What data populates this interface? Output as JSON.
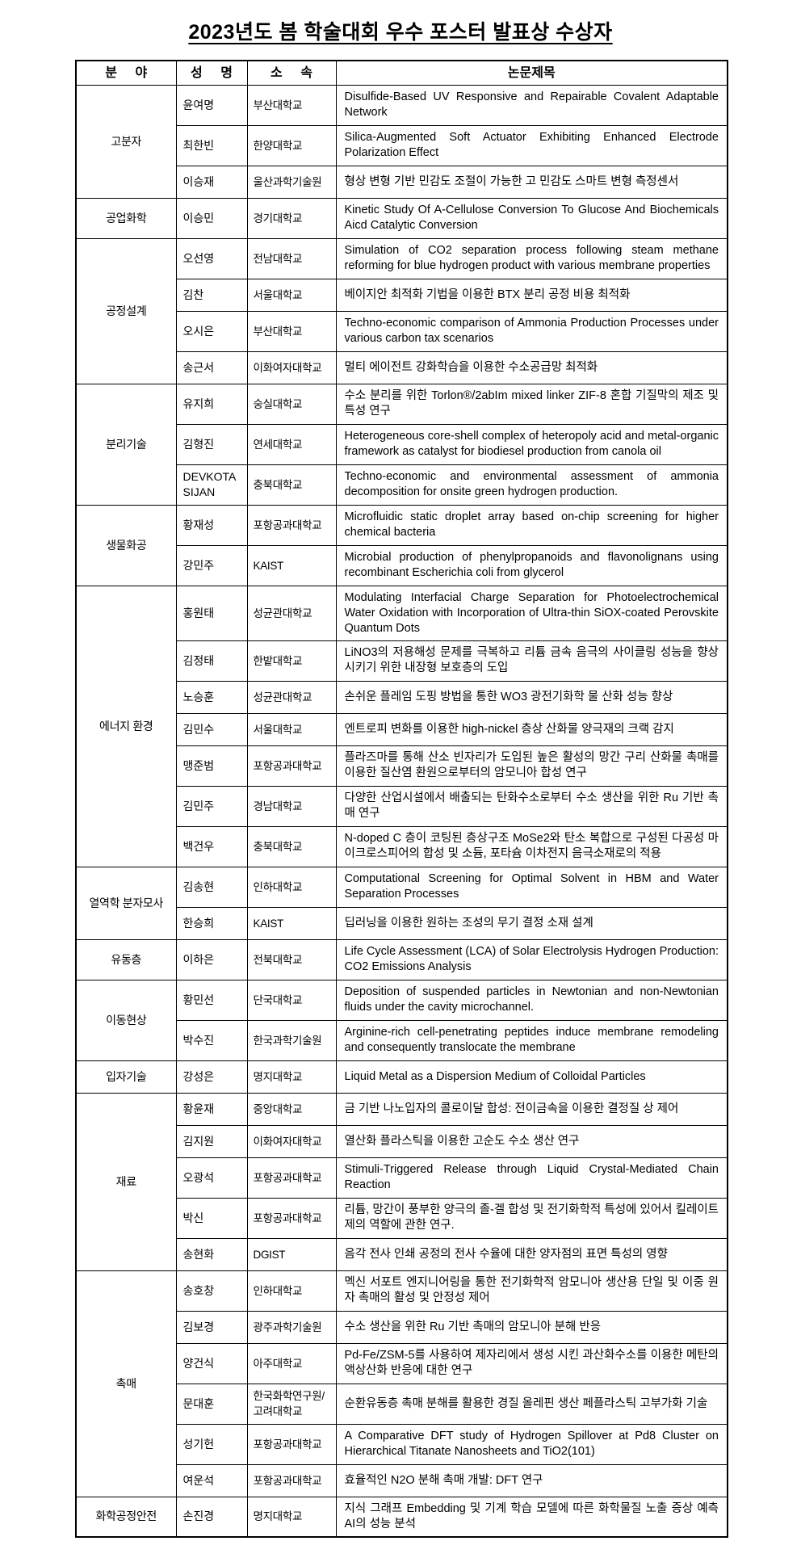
{
  "page": {
    "title": "2023년도 봄 학술대회 우수 포스터 발표상 수상자"
  },
  "colors": {
    "background": "#ffffff",
    "text": "#000000",
    "border": "#000000"
  },
  "table": {
    "headers": [
      "분 야",
      "성 명",
      "소 속",
      "논문제목"
    ],
    "sections": [
      {
        "field": "고분자",
        "rows": [
          {
            "name": "윤여명",
            "affiliation": "부산대학교",
            "title": "Disulfide-Based UV Responsive and Repairable Covalent Adaptable Network",
            "lines": 2
          },
          {
            "name": "최한빈",
            "affiliation": "한양대학교",
            "title": "Silica-Augmented Soft Actuator Exhibiting Enhanced Electrode Polarization Effect",
            "lines": 2
          },
          {
            "name": "이승재",
            "affiliation": "울산과학기술원",
            "title": "형상 변형 기반 민감도 조절이 가능한 고 민감도 스마트 변형 측정센서",
            "lines": 1
          }
        ]
      },
      {
        "field": "공업화학",
        "rows": [
          {
            "name": "이승민",
            "affiliation": "경기대학교",
            "title": "Kinetic Study Of A-Cellulose Conversion To Glucose And Biochemicals Aicd Catalytic Conversion",
            "lines": 2
          }
        ]
      },
      {
        "field": "공정설계",
        "rows": [
          {
            "name": "오선영",
            "affiliation": "전남대학교",
            "title": "Simulation of CO2 separation process following steam methane reforming for blue hydrogen product with various membrane properties",
            "lines": 2
          },
          {
            "name": "김찬",
            "affiliation": "서울대학교",
            "title": "베이지안 최적화 기법을 이용한 BTX 분리 공정 비용 최적화",
            "lines": 1
          },
          {
            "name": "오시은",
            "affiliation": "부산대학교",
            "title": "Techno-economic comparison of Ammonia Production Processes under various carbon tax scenarios",
            "lines": 2
          },
          {
            "name": "송근서",
            "affiliation": "이화여자대학교",
            "title": "멀티 에이전트 강화학습을 이용한 수소공급망 최적화",
            "lines": 1
          }
        ]
      },
      {
        "field": "분리기술",
        "rows": [
          {
            "name": "유지희",
            "affiliation": "숭실대학교",
            "title": "수소 분리를 위한 Torlon®/2abIm mixed linker ZIF-8 혼합 기질막의 제조 및 특성 연구",
            "lines": 2
          },
          {
            "name": "김형진",
            "affiliation": "연세대학교",
            "title": "Heterogeneous core-shell complex of heteropoly acid and metal-organic framework as catalyst for biodiesel production from canola oil",
            "lines": 2
          },
          {
            "name": "DEVKOTA SIJAN",
            "affiliation": "충북대학교",
            "title": "Techno-economic and environmental assessment of ammonia decomposition for onsite green hydrogen production.",
            "lines": 2
          }
        ]
      },
      {
        "field": "생물화공",
        "rows": [
          {
            "name": "황재성",
            "affiliation": "포항공과대학교",
            "title": "Microfluidic static droplet array based on-chip screening for higher chemical bacteria",
            "lines": 2
          },
          {
            "name": "강민주",
            "affiliation": "KAIST",
            "title": "Microbial production of phenylpropanoids and flavonolignans using recombinant Escherichia coli from glycerol",
            "lines": 2
          }
        ]
      },
      {
        "field": "에너지 환경",
        "rows": [
          {
            "name": "홍원태",
            "affiliation": "성균관대학교",
            "title": "Modulating Interfacial Charge Separation for Photoelectrochemical Water Oxidation with Incorporation of Ultra-thin SiOX-coated Perovskite Quantum Dots",
            "lines": 3
          },
          {
            "name": "김정태",
            "affiliation": "한밭대학교",
            "title": "LiNO3의 저용해성 문제를 극복하고 리튬 금속 음극의 사이클링 성능을 향상시키기 위한 내장형 보호층의 도입",
            "lines": 2
          },
          {
            "name": "노승훈",
            "affiliation": "성균관대학교",
            "title": "손쉬운 플레임 도핑 방법을 통한 WO3 광전기화학 물 산화 성능 향상",
            "lines": 1
          },
          {
            "name": "김민수",
            "affiliation": "서울대학교",
            "title": "엔트로피 변화를 이용한 high-nickel 층상 산화물 양극재의 크랙 감지",
            "lines": 1
          },
          {
            "name": "맹준범",
            "affiliation": "포항공과대학교",
            "title": "플라즈마를 통해 산소 빈자리가 도입된 높은 활성의 망간 구리 산화물 촉매를 이용한 질산염 환원으로부터의 암모니아 합성 연구",
            "lines": 2
          },
          {
            "name": "김민주",
            "affiliation": "경남대학교",
            "title": "다양한 산업시설에서 배출되는 탄화수소로부터 수소 생산을 위한 Ru 기반 촉매 연구",
            "lines": 2
          },
          {
            "name": "백건우",
            "affiliation": "충북대학교",
            "title": "N-doped C 층이 코팅된 층상구조 MoSe2와 탄소 복합으로 구성된 다공성 마이크로스피어의 합성 및 소듐, 포타슘 이차전지 음극소재로의 적용",
            "lines": 2
          }
        ]
      },
      {
        "field": "열역학 분자모사",
        "rows": [
          {
            "name": "김송현",
            "affiliation": "인하대학교",
            "title": "Computational Screening for Optimal Solvent in HBM and Water Separation Processes",
            "lines": 2
          },
          {
            "name": "한승희",
            "affiliation": "KAIST",
            "title": "딥러닝을 이용한 원하는 조성의 무기 결정 소재 설계",
            "lines": 1
          }
        ]
      },
      {
        "field": "유동층",
        "rows": [
          {
            "name": "이하은",
            "affiliation": "전북대학교",
            "title": "Life Cycle Assessment (LCA) of Solar Electrolysis Hydrogen Production: CO2 Emissions Analysis",
            "lines": 2
          }
        ]
      },
      {
        "field": "이동현상",
        "rows": [
          {
            "name": "황민선",
            "affiliation": "단국대학교",
            "title": "Deposition of suspended particles in Newtonian and non-Newtonian fluids under the cavity microchannel.",
            "lines": 2
          },
          {
            "name": "박수진",
            "affiliation": "한국과학기술원",
            "title": "Arginine-rich cell-penetrating peptides induce membrane remodeling and consequently translocate the membrane",
            "lines": 2
          }
        ]
      },
      {
        "field": "입자기술",
        "rows": [
          {
            "name": "강성은",
            "affiliation": "명지대학교",
            "title": "Liquid Metal as a Dispersion Medium of Colloidal Particles",
            "lines": 1
          }
        ]
      },
      {
        "field": "재료",
        "rows": [
          {
            "name": "황윤재",
            "affiliation": "중앙대학교",
            "title": "금 기반 나노입자의 콜로이달 합성: 전이금속을 이용한 결정질 상 제어",
            "lines": 1
          },
          {
            "name": "김지원",
            "affiliation": "이화여자대학교",
            "title": "열산화 플라스틱을 이용한 고순도 수소 생산 연구",
            "lines": 1
          },
          {
            "name": "오광석",
            "affiliation": "포항공과대학교",
            "title": "Stimuli-Triggered Release through Liquid Crystal-Mediated Chain Reaction",
            "lines": 2
          },
          {
            "name": "박신",
            "affiliation": "포항공과대학교",
            "title": "리튬, 망간이 풍부한 양극의 졸-겔 합성 및 전기화학적 특성에 있어서 킬레이트제의 역할에 관한 연구.",
            "lines": 2
          },
          {
            "name": "송현화",
            "affiliation": "DGIST",
            "title": "음각 전사 인쇄 공정의 전사 수율에 대한 양자점의 표면 특성의 영향",
            "lines": 1
          }
        ]
      },
      {
        "field": "촉매",
        "rows": [
          {
            "name": "송호창",
            "affiliation": "인하대학교",
            "title": "멕신 서포트 엔지니어링을 통한 전기화학적 암모니아 생산용 단일 및 이중 원자 촉매의 활성 및 안정성 제어",
            "lines": 2
          },
          {
            "name": "김보경",
            "affiliation": "광주과학기술원",
            "title": "수소 생산을 위한 Ru 기반 촉매의 암모니아 분해 반응",
            "lines": 1
          },
          {
            "name": "양건식",
            "affiliation": "아주대학교",
            "title": "Pd-Fe/ZSM-5를 사용하여 제자리에서 생성 시킨 과산화수소를 이용한 메탄의 액상산화 반응에 대한 연구",
            "lines": 2
          },
          {
            "name": "문대훈",
            "affiliation": "한국화학연구원/고려대학교",
            "title": "순환유동층 촉매 분해를 활용한 경질 올레핀 생산 페플라스틱 고부가화 기술",
            "lines": 2
          },
          {
            "name": "성기헌",
            "affiliation": "포항공과대학교",
            "title": "A Comparative DFT study of Hydrogen Spillover at Pd8 Cluster on Hierarchical Titanate Nanosheets and TiO2(101)",
            "lines": 2
          },
          {
            "name": "여운석",
            "affiliation": "포항공과대학교",
            "title": "효율적인 N2O 분해 촉매 개발: DFT 연구",
            "lines": 1
          }
        ]
      },
      {
        "field": "화학공정안전",
        "rows": [
          {
            "name": "손진경",
            "affiliation": "명지대학교",
            "title": "지식 그래프 Embedding 및 기계 학습 모델에 따른 화학물질 노출 증상 예측 AI의 성능 분석",
            "lines": 2
          }
        ]
      }
    ]
  }
}
